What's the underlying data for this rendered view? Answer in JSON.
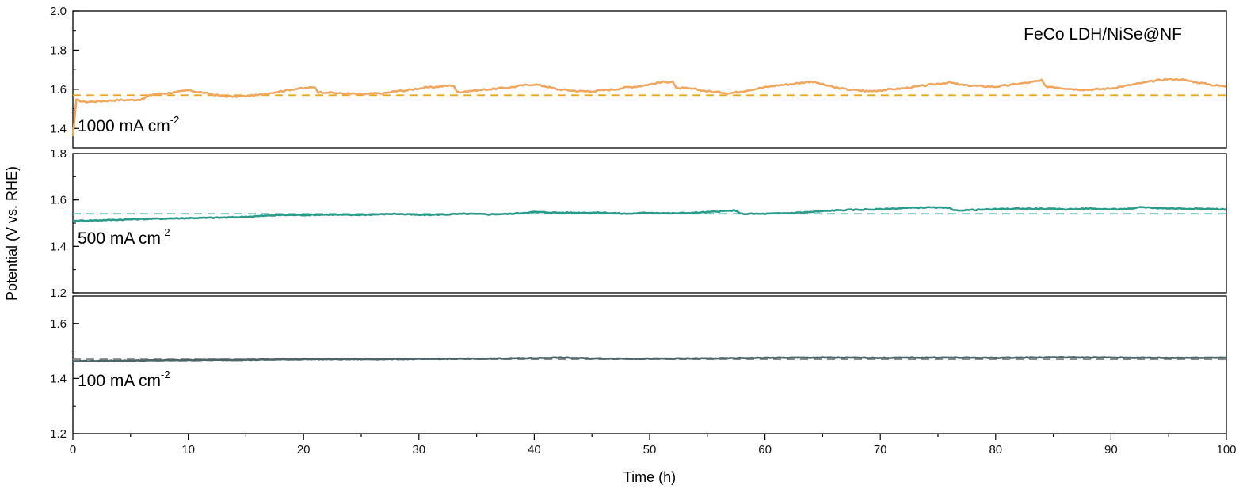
{
  "chart_data": {
    "type": "line",
    "annotation": "FeCo LDH/NiSe@NF",
    "xlabel": "Time (h)",
    "ylabel": "Potential (V vs. RHE)",
    "xlim": [
      0,
      100
    ],
    "xticks": [
      "0",
      "10",
      "20",
      "30",
      "40",
      "50",
      "60",
      "70",
      "80",
      "90",
      "100"
    ],
    "panels": [
      {
        "label": "1000 mA cm",
        "label_sup": "-2",
        "color": "#f0a65e",
        "dash_color": "#f0a21f",
        "reference": 1.57,
        "ylim": [
          1.3,
          2.0
        ],
        "yticks": [
          "1.4",
          "1.6",
          "1.8",
          "2.0"
        ],
        "x": [
          0,
          0.3,
          1,
          2,
          3,
          4,
          5,
          6,
          6.5,
          7,
          8,
          9,
          10,
          11,
          12,
          13,
          14,
          15,
          16,
          17,
          18,
          19,
          20,
          21,
          21.3,
          22,
          23,
          24,
          25,
          26,
          27,
          28,
          29,
          30,
          31,
          32,
          33,
          33.3,
          34,
          35,
          36,
          37,
          38,
          39,
          40,
          41,
          42,
          43,
          44,
          45,
          46,
          47,
          48,
          49,
          50,
          51,
          52,
          52.3,
          53,
          54,
          55,
          56,
          57,
          58,
          59,
          60,
          61,
          62,
          63,
          64,
          65,
          66,
          67,
          68,
          69,
          70,
          71,
          72,
          73,
          74,
          75,
          76,
          77,
          78,
          79,
          80,
          81,
          82,
          83,
          84,
          84.3,
          85,
          86,
          87,
          88,
          89,
          90,
          91,
          92,
          93,
          94,
          95,
          96,
          97,
          98,
          99,
          100
        ],
        "y": [
          1.36,
          1.545,
          1.535,
          1.538,
          1.542,
          1.545,
          1.545,
          1.548,
          1.565,
          1.575,
          1.58,
          1.585,
          1.595,
          1.585,
          1.575,
          1.565,
          1.563,
          1.565,
          1.57,
          1.58,
          1.59,
          1.6,
          1.605,
          1.61,
          1.585,
          1.585,
          1.58,
          1.578,
          1.575,
          1.578,
          1.58,
          1.59,
          1.595,
          1.605,
          1.61,
          1.615,
          1.62,
          1.585,
          1.59,
          1.595,
          1.6,
          1.605,
          1.61,
          1.62,
          1.625,
          1.615,
          1.6,
          1.595,
          1.59,
          1.59,
          1.595,
          1.6,
          1.61,
          1.615,
          1.625,
          1.635,
          1.64,
          1.605,
          1.605,
          1.6,
          1.59,
          1.585,
          1.58,
          1.59,
          1.6,
          1.61,
          1.62,
          1.625,
          1.632,
          1.64,
          1.625,
          1.61,
          1.6,
          1.595,
          1.59,
          1.595,
          1.6,
          1.605,
          1.612,
          1.62,
          1.628,
          1.635,
          1.622,
          1.618,
          1.615,
          1.613,
          1.62,
          1.628,
          1.635,
          1.645,
          1.615,
          1.612,
          1.605,
          1.6,
          1.598,
          1.6,
          1.605,
          1.615,
          1.625,
          1.635,
          1.645,
          1.652,
          1.65,
          1.64,
          1.63,
          1.62,
          1.615
        ]
      },
      {
        "label": "500 mA cm",
        "label_sup": "-2",
        "color": "#2a9a8a",
        "dash_color": "#4cb8a8",
        "reference": 1.54,
        "ylim": [
          1.2,
          1.8
        ],
        "yticks": [
          "1.2",
          "1.4",
          "1.6",
          "1.8"
        ],
        "x": [
          0,
          2,
          4,
          6,
          8,
          10,
          12,
          14,
          16,
          18,
          20,
          22,
          24,
          26,
          28,
          30,
          32,
          34,
          36,
          38,
          40,
          42,
          44,
          46,
          48,
          50,
          52,
          54,
          56,
          57.3,
          58,
          60,
          62,
          64,
          66,
          68,
          70,
          72,
          74,
          76,
          76.3,
          78,
          80,
          82,
          84,
          86,
          88,
          90,
          92,
          92.5,
          94,
          96,
          98,
          100
        ],
        "y": [
          1.51,
          1.512,
          1.515,
          1.518,
          1.52,
          1.522,
          1.523,
          1.525,
          1.53,
          1.535,
          1.535,
          1.537,
          1.535,
          1.537,
          1.54,
          1.535,
          1.537,
          1.54,
          1.538,
          1.54,
          1.548,
          1.545,
          1.545,
          1.545,
          1.54,
          1.545,
          1.542,
          1.545,
          1.55,
          1.555,
          1.54,
          1.54,
          1.543,
          1.548,
          1.555,
          1.558,
          1.56,
          1.565,
          1.568,
          1.565,
          1.555,
          1.557,
          1.56,
          1.563,
          1.562,
          1.56,
          1.563,
          1.56,
          1.562,
          1.57,
          1.565,
          1.563,
          1.562,
          1.56
        ]
      },
      {
        "label": "100 mA cm",
        "label_sup": "-2",
        "color": "#4a6468",
        "dash_color": "#8a8a8a",
        "reference": 1.47,
        "ylim": [
          1.2,
          1.7
        ],
        "yticks": [
          "1.2",
          "1.4",
          "1.6"
        ],
        "x": [
          0,
          5,
          10,
          15,
          20,
          25,
          30,
          35,
          40,
          42,
          45,
          50,
          55,
          60,
          65,
          70,
          75,
          80,
          85,
          90,
          95,
          100
        ],
        "y": [
          1.463,
          1.465,
          1.467,
          1.468,
          1.47,
          1.47,
          1.471,
          1.472,
          1.474,
          1.476,
          1.473,
          1.472,
          1.473,
          1.475,
          1.476,
          1.475,
          1.476,
          1.475,
          1.477,
          1.476,
          1.475,
          1.476
        ]
      }
    ]
  }
}
